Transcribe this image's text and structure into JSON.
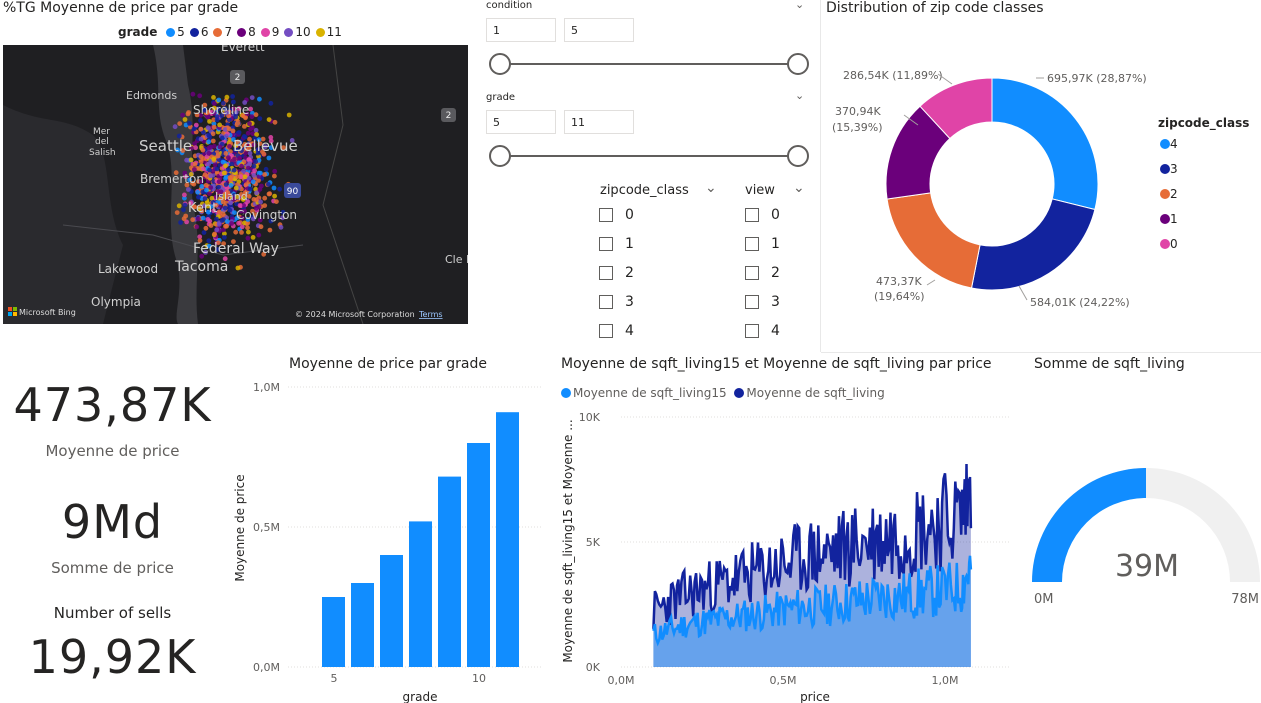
{
  "map_visual": {
    "title": "%TG Moyenne de price par grade",
    "legend_title": "grade",
    "legend_items": [
      {
        "label": "5",
        "color": "#118DFF"
      },
      {
        "label": "6",
        "color": "#12239E"
      },
      {
        "label": "7",
        "color": "#E66C37"
      },
      {
        "label": "8",
        "color": "#6B007B"
      },
      {
        "label": "9",
        "color": "#E044A7"
      },
      {
        "label": "10",
        "color": "#744EC2"
      },
      {
        "label": "11",
        "color": "#D9B300"
      }
    ],
    "place_labels": [
      "Everett",
      "Edmonds",
      "Shoreline",
      "Mer",
      "del",
      "Salish",
      "Seattle",
      "Bellevue",
      "Bremerton",
      "Kent",
      "Island",
      "Covington",
      "Federal Way",
      "Tacoma",
      "Lakewood",
      "Olympia",
      "Cle E"
    ],
    "road_shields": [
      "2",
      "2",
      "90"
    ],
    "attribution": "© 2024 Microsoft Corporation",
    "terms_link": "Terms",
    "bing_logo_text": "Microsoft Bing"
  },
  "slicers": {
    "condition": {
      "label": "condition",
      "min": "1",
      "max": "5"
    },
    "grade": {
      "label": "grade",
      "min": "5",
      "max": "11"
    },
    "zipcode_class": {
      "label": "zipcode_class",
      "options": [
        "0",
        "1",
        "2",
        "3",
        "4"
      ]
    },
    "view": {
      "label": "view",
      "options": [
        "0",
        "1",
        "2",
        "3",
        "4"
      ]
    }
  },
  "donut": {
    "title": "Distribution of zip code classes",
    "legend_title": "zipcode_class",
    "labels": [
      "695,97K (28,87%)",
      "584,01K (24,22%)",
      "473,37K",
      "(19,64%)",
      "370,94K",
      "(15,39%)",
      "286,54K (11,89%)"
    ],
    "chart_data": {
      "type": "pie",
      "categories": [
        "4",
        "3",
        "2",
        "1",
        "0"
      ],
      "values": [
        695.97,
        584.01,
        473.37,
        370.94,
        286.54
      ],
      "colors": [
        "#118DFF",
        "#12239E",
        "#E66C37",
        "#6B007B",
        "#E044A7"
      ]
    }
  },
  "kpis": {
    "avg_price_value": "473,87K",
    "avg_price_label": "Moyenne de price",
    "sum_price_value": "9Md",
    "sum_price_label": "Somme de price",
    "sells_label": "Number of sells",
    "sells_value": "19,92K"
  },
  "bar_chart": {
    "title": "Moyenne de price par grade",
    "xlabel": "grade",
    "ylabel": "Moyenne de price",
    "y_ticks": [
      "0,0M",
      "0,5M",
      "1,0M"
    ],
    "x_ticks": [
      "5",
      "10"
    ],
    "color": "#118DFF",
    "chart_data": {
      "type": "bar",
      "categories": [
        "5",
        "6",
        "7",
        "8",
        "9",
        "10",
        "11"
      ],
      "values": [
        0.25,
        0.3,
        0.4,
        0.52,
        0.68,
        0.8,
        0.91
      ],
      "ylim": [
        0,
        1.0
      ]
    }
  },
  "area_chart": {
    "title": "Moyenne de sqft_living15 et Moyenne de sqft_living par price",
    "series_labels": [
      "Moyenne de sqft_living15",
      "Moyenne de sqft_living"
    ],
    "series_colors": [
      "#118DFF",
      "#12239E"
    ],
    "xlabel": "price",
    "ylabel": "Moyenne de sqft_living15 et Moyenne ...",
    "y_ticks": [
      "0K",
      "5K",
      "10K"
    ],
    "x_ticks": [
      "0,0M",
      "0,5M",
      "1,0M"
    ],
    "chart_data": {
      "type": "area",
      "x": [
        0.1,
        0.15,
        0.2,
        0.25,
        0.3,
        0.35,
        0.4,
        0.45,
        0.5,
        0.55,
        0.6,
        0.65,
        0.7,
        0.75,
        0.8,
        0.85,
        0.9,
        0.95,
        1.0,
        1.05,
        1.08
      ],
      "series": [
        {
          "name": "Moyenne de sqft_living15",
          "values": [
            1300,
            1500,
            1700,
            1800,
            1900,
            2000,
            2100,
            2200,
            2300,
            2400,
            2400,
            2500,
            2600,
            2700,
            2800,
            2800,
            2900,
            3000,
            3100,
            3200,
            4000
          ]
        },
        {
          "name": "Moyenne de sqft_living",
          "values": [
            2200,
            2600,
            2900,
            3100,
            3300,
            3500,
            3700,
            3900,
            4100,
            4300,
            4500,
            4600,
            4800,
            5000,
            5100,
            5300,
            5500,
            5700,
            5900,
            6100,
            7100
          ]
        }
      ],
      "xlim": [
        0,
        1.2
      ],
      "ylim": [
        0,
        10000
      ]
    }
  },
  "gauge": {
    "title": "Somme de sqft_living",
    "value_label": "39M",
    "min_label": "0M",
    "max_label": "78M",
    "fill_color": "#118DFF",
    "chart_data": {
      "type": "gauge",
      "value": 39,
      "min": 0,
      "max": 78
    }
  }
}
